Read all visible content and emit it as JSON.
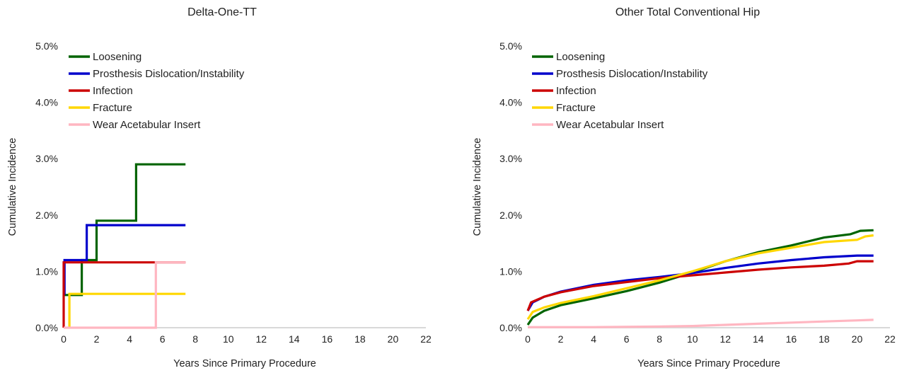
{
  "chart_data": [
    {
      "type": "line",
      "title": "Delta-One-TT",
      "xlabel": "Years Since Primary Procedure",
      "ylabel": "Cumulative Incidence",
      "xlim": [
        0,
        22
      ],
      "ylim": [
        0,
        5
      ],
      "x_ticks": [
        "0",
        "2",
        "4",
        "6",
        "8",
        "10",
        "12",
        "14",
        "16",
        "18",
        "20",
        "22"
      ],
      "y_ticks": [
        "0.0%",
        "1.0%",
        "2.0%",
        "3.0%",
        "4.0%",
        "5.0%"
      ],
      "grid": false,
      "legend_position": "top-left",
      "series": [
        {
          "name": "Loosening",
          "color": "#006400",
          "step": true,
          "points": [
            [
              0,
              0.58
            ],
            [
              1.1,
              0.58
            ],
            [
              1.1,
              1.2
            ],
            [
              2.0,
              1.2
            ],
            [
              2.0,
              1.9
            ],
            [
              4.4,
              1.9
            ],
            [
              4.4,
              2.9
            ],
            [
              7.4,
              2.9
            ]
          ]
        },
        {
          "name": "Prosthesis Dislocation/Instability",
          "color": "#0000CC",
          "step": true,
          "points": [
            [
              0.05,
              0.58
            ],
            [
              0.05,
              1.2
            ],
            [
              1.4,
              1.2
            ],
            [
              1.4,
              1.82
            ],
            [
              7.4,
              1.82
            ]
          ]
        },
        {
          "name": "Infection",
          "color": "#CC0000",
          "step": true,
          "points": [
            [
              0,
              0
            ],
            [
              0,
              1.16
            ],
            [
              7.4,
              1.16
            ]
          ]
        },
        {
          "name": "Fracture",
          "color": "#FFD700",
          "step": true,
          "points": [
            [
              0.35,
              0
            ],
            [
              0.35,
              0.6
            ],
            [
              7.4,
              0.6
            ]
          ]
        },
        {
          "name": "Wear Acetabular Insert",
          "color": "#FFB6C1",
          "step": true,
          "points": [
            [
              0,
              0
            ],
            [
              5.6,
              0
            ],
            [
              5.6,
              1.16
            ],
            [
              7.4,
              1.16
            ]
          ]
        }
      ]
    },
    {
      "type": "line",
      "title": "Other Total Conventional Hip",
      "xlabel": "Years Since Primary Procedure",
      "ylabel": "Cumulative Incidence",
      "xlim": [
        0,
        22
      ],
      "ylim": [
        0,
        5
      ],
      "x_ticks": [
        "0",
        "2",
        "4",
        "6",
        "8",
        "10",
        "12",
        "14",
        "16",
        "18",
        "20",
        "22"
      ],
      "y_ticks": [
        "0.0%",
        "1.0%",
        "2.0%",
        "3.0%",
        "4.0%",
        "5.0%"
      ],
      "grid": false,
      "legend_position": "top-left",
      "series": [
        {
          "name": "Loosening",
          "color": "#006400",
          "step": false,
          "points": [
            [
              0,
              0.05
            ],
            [
              0.3,
              0.18
            ],
            [
              1,
              0.3
            ],
            [
              2,
              0.4
            ],
            [
              4,
              0.52
            ],
            [
              6,
              0.65
            ],
            [
              8,
              0.8
            ],
            [
              10,
              0.98
            ],
            [
              12,
              1.18
            ],
            [
              14,
              1.34
            ],
            [
              16,
              1.46
            ],
            [
              18,
              1.6
            ],
            [
              19.6,
              1.66
            ],
            [
              20.2,
              1.72
            ],
            [
              21,
              1.73
            ]
          ]
        },
        {
          "name": "Prosthesis Dislocation/Instability",
          "color": "#0000CC",
          "step": false,
          "points": [
            [
              0,
              0.3
            ],
            [
              0.3,
              0.45
            ],
            [
              1,
              0.55
            ],
            [
              2,
              0.64
            ],
            [
              4,
              0.76
            ],
            [
              6,
              0.84
            ],
            [
              8,
              0.9
            ],
            [
              10,
              0.97
            ],
            [
              12,
              1.06
            ],
            [
              14,
              1.14
            ],
            [
              16,
              1.2
            ],
            [
              18,
              1.25
            ],
            [
              20,
              1.28
            ],
            [
              21,
              1.28
            ]
          ]
        },
        {
          "name": "Infection",
          "color": "#CC0000",
          "step": false,
          "points": [
            [
              0,
              0.3
            ],
            [
              0.2,
              0.45
            ],
            [
              1,
              0.55
            ],
            [
              2,
              0.63
            ],
            [
              4,
              0.74
            ],
            [
              6,
              0.81
            ],
            [
              8,
              0.88
            ],
            [
              10,
              0.93
            ],
            [
              12,
              0.98
            ],
            [
              14,
              1.03
            ],
            [
              16,
              1.07
            ],
            [
              18,
              1.1
            ],
            [
              19.5,
              1.14
            ],
            [
              20,
              1.18
            ],
            [
              21,
              1.18
            ]
          ]
        },
        {
          "name": "Fracture",
          "color": "#FFD700",
          "step": false,
          "points": [
            [
              0,
              0.15
            ],
            [
              0.3,
              0.28
            ],
            [
              1,
              0.36
            ],
            [
              2,
              0.44
            ],
            [
              4,
              0.56
            ],
            [
              6,
              0.7
            ],
            [
              8,
              0.84
            ],
            [
              10,
              1.0
            ],
            [
              12,
              1.18
            ],
            [
              14,
              1.32
            ],
            [
              16,
              1.42
            ],
            [
              18,
              1.52
            ],
            [
              20,
              1.56
            ],
            [
              20.5,
              1.62
            ],
            [
              21,
              1.64
            ]
          ]
        },
        {
          "name": "Wear Acetabular Insert",
          "color": "#FFB6C1",
          "step": false,
          "points": [
            [
              0,
              0.01
            ],
            [
              4,
              0.01
            ],
            [
              8,
              0.02
            ],
            [
              10,
              0.03
            ],
            [
              12,
              0.05
            ],
            [
              14,
              0.07
            ],
            [
              16,
              0.09
            ],
            [
              18,
              0.11
            ],
            [
              20,
              0.13
            ],
            [
              21,
              0.14
            ]
          ]
        }
      ]
    }
  ]
}
